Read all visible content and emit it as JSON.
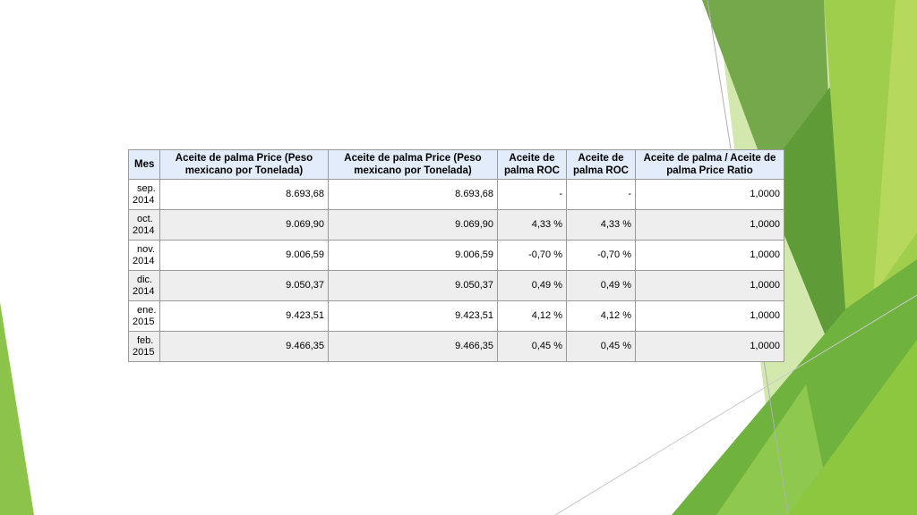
{
  "table": {
    "headers": [
      "Mes",
      "Aceite de palma Price (Peso mexicano por Tonelada)",
      "Aceite de palma Price (Peso mexicano por Tonelada)",
      "Aceite de palma ROC",
      "Aceite de palma ROC",
      "Aceite de palma / Aceite de palma Price Ratio"
    ],
    "rows": [
      {
        "month": "sep.",
        "year": "2014",
        "price1": "8.693,68",
        "price2": "8.693,68",
        "roc1": "-",
        "roc2": "-",
        "ratio": "1,0000"
      },
      {
        "month": "oct.",
        "year": "2014",
        "price1": "9.069,90",
        "price2": "9.069,90",
        "roc1": "4,33 %",
        "roc2": "4,33 %",
        "ratio": "1,0000"
      },
      {
        "month": "nov.",
        "year": "2014",
        "price1": "9.006,59",
        "price2": "9.006,59",
        "roc1": "-0,70 %",
        "roc2": "-0,70 %",
        "ratio": "1,0000"
      },
      {
        "month": "dic.",
        "year": "2014",
        "price1": "9.050,37",
        "price2": "9.050,37",
        "roc1": "0,49 %",
        "roc2": "0,49 %",
        "ratio": "1,0000"
      },
      {
        "month": "ene.",
        "year": "2015",
        "price1": "9.423,51",
        "price2": "9.423,51",
        "roc1": "4,12 %",
        "roc2": "4,12 %",
        "ratio": "1,0000"
      },
      {
        "month": "feb.",
        "year": "2015",
        "price1": "9.466,35",
        "price2": "9.466,35",
        "roc1": "0,45 %",
        "roc2": "0,45 %",
        "ratio": "1,0000"
      }
    ]
  },
  "colors": {
    "header_bg": "#e3ecfa",
    "alt_row_bg": "#eeeeee",
    "green_light": "#9bc846",
    "green_mid": "#7ab648",
    "green_dark": "#5a9a3a",
    "green_pale": "#c8e29a"
  }
}
